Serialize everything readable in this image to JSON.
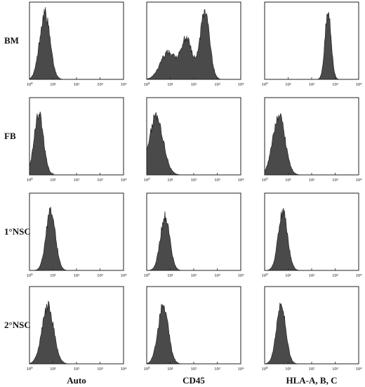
{
  "chart_data": {
    "type": "area",
    "x_scale": "log",
    "xlim": [
      1,
      10000
    ],
    "x_ticks": [
      "10⁰",
      "10¹",
      "10²",
      "10³",
      "10⁴"
    ],
    "row_labels": [
      "BM",
      "FB",
      "1°NSC",
      "2°NSC"
    ],
    "col_labels": [
      "Auto",
      "CD45",
      "HLA-A, B, C"
    ],
    "panels": [
      {
        "row": 0,
        "col": 0,
        "peaks": [
          {
            "center": 4.5,
            "height": 0.86,
            "width": 0.22
          }
        ]
      },
      {
        "row": 0,
        "col": 1,
        "peaks": [
          {
            "center": 8,
            "height": 0.35,
            "width": 0.32
          },
          {
            "center": 50,
            "height": 0.52,
            "width": 0.25
          },
          {
            "center": 300,
            "height": 0.88,
            "width": 0.2
          }
        ]
      },
      {
        "row": 0,
        "col": 2,
        "peaks": [
          {
            "center": 500,
            "height": 0.9,
            "width": 0.13
          }
        ]
      },
      {
        "row": 1,
        "col": 0,
        "peaks": [
          {
            "center": 2.5,
            "height": 0.78,
            "width": 0.2
          }
        ]
      },
      {
        "row": 1,
        "col": 1,
        "peaks": [
          {
            "center": 2.5,
            "height": 0.75,
            "width": 0.3
          }
        ]
      },
      {
        "row": 1,
        "col": 2,
        "peaks": [
          {
            "center": 4,
            "height": 0.78,
            "width": 0.26
          }
        ]
      },
      {
        "row": 2,
        "col": 0,
        "peaks": [
          {
            "center": 8,
            "height": 0.78,
            "width": 0.2
          }
        ]
      },
      {
        "row": 2,
        "col": 1,
        "peaks": [
          {
            "center": 6,
            "height": 0.7,
            "width": 0.2
          }
        ]
      },
      {
        "row": 2,
        "col": 2,
        "peaks": [
          {
            "center": 6,
            "height": 0.75,
            "width": 0.2
          }
        ]
      },
      {
        "row": 3,
        "col": 0,
        "peaks": [
          {
            "center": 6,
            "height": 0.75,
            "width": 0.25
          }
        ]
      },
      {
        "row": 3,
        "col": 1,
        "peaks": [
          {
            "center": 5,
            "height": 0.75,
            "width": 0.22
          }
        ]
      },
      {
        "row": 3,
        "col": 2,
        "peaks": [
          {
            "center": 5,
            "height": 0.75,
            "width": 0.2
          }
        ]
      }
    ]
  }
}
